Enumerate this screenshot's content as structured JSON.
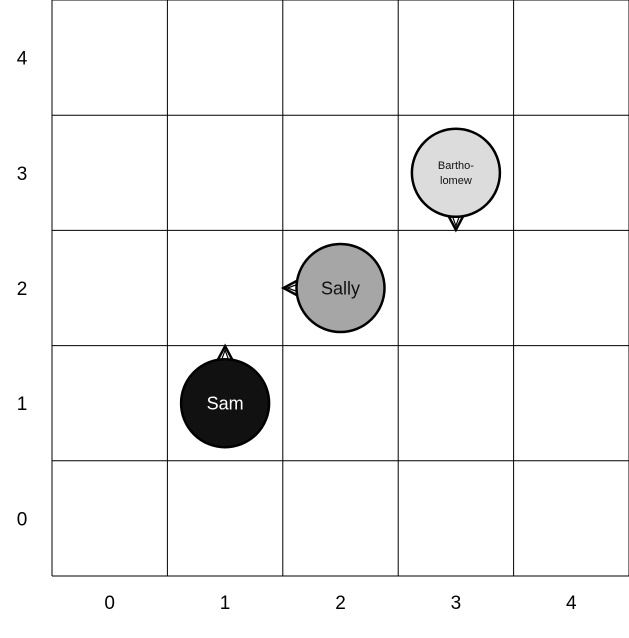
{
  "grid": {
    "columns": 5,
    "rows": 5,
    "x_labels": [
      "0",
      "1",
      "2",
      "3",
      "4"
    ],
    "y_labels": [
      "0",
      "1",
      "2",
      "3",
      "4"
    ]
  },
  "agents": [
    {
      "id": "sam",
      "label_lines": [
        "Sam"
      ],
      "col": 1,
      "row": 1,
      "facing": "up",
      "fill": "#111111",
      "text_color": "#ffffff"
    },
    {
      "id": "sally",
      "label_lines": [
        "Sally"
      ],
      "col": 2,
      "row": 2,
      "facing": "left",
      "fill": "#a6a6a6",
      "text_color": "#111111"
    },
    {
      "id": "bartholomew",
      "label_lines": [
        "Bartho-",
        "lomew"
      ],
      "col": 3,
      "row": 3,
      "facing": "down",
      "fill": "#dcdcdc",
      "text_color": "#111111"
    }
  ],
  "colors": {
    "grid_line": "#000000",
    "agent_outline": "#000000",
    "label_text": "#000000"
  }
}
